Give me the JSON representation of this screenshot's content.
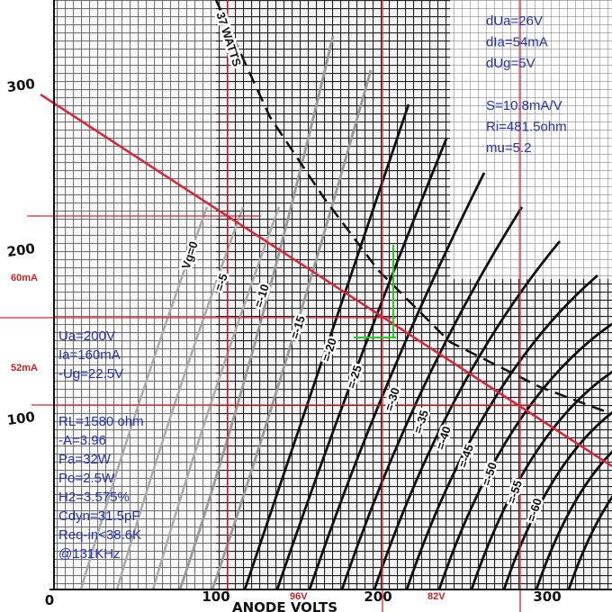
{
  "axes": {
    "y_labels": [
      "300",
      "200",
      "100"
    ],
    "x_labels": [
      "0",
      "100",
      "200",
      "300"
    ],
    "x_title": "ANODE VOLTS"
  },
  "dissipation_label": "37 WATTS",
  "curve_labels": [
    "Vg=0",
    "=-5",
    "=-10",
    "=-15",
    "=-20",
    "=-25",
    "=-30",
    "=-35",
    "=-40",
    "=-45",
    "=-50",
    "=-55",
    "=-60"
  ],
  "annotations": {
    "top_right": [
      "dUa=26V",
      "dIa=54mA",
      "dUg=5V",
      "",
      "S=10.8mA/V",
      "Ri=481.5ohm",
      "mu=5.2"
    ],
    "operating_point": [
      "Ua=200V",
      "Ia=160mA",
      "-Ug=22.5V"
    ],
    "load": [
      "RL=1580 ohm",
      "-A=3.96",
      "Pa=32W",
      "Po=2.5W",
      "H2=3.575%",
      "Cdyn=31.5pF",
      "Req-in<38.6K",
      "@131KHz"
    ]
  },
  "red_labels": [
    "60mA",
    "52mA",
    "96V",
    "82V"
  ]
}
